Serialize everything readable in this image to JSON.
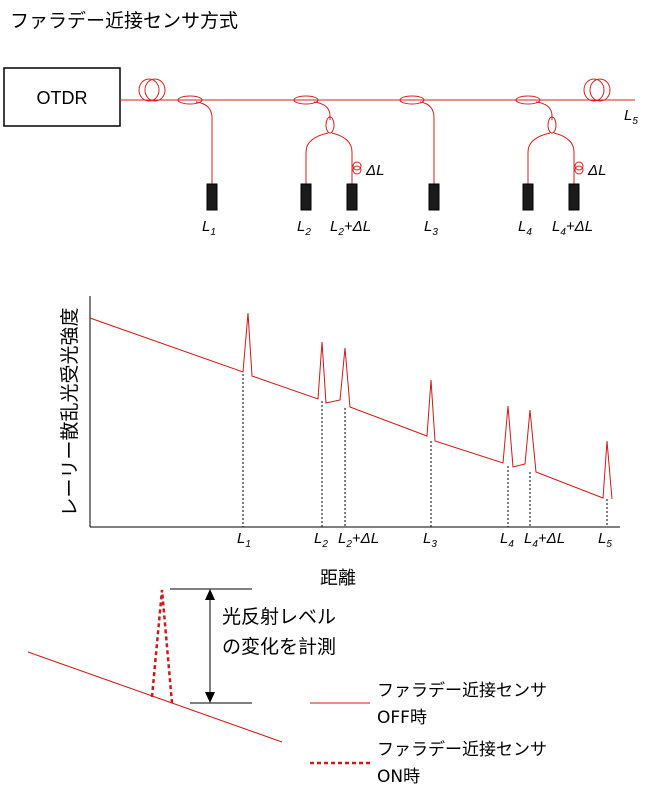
{
  "title": "ファラデー近接センサ方式",
  "diagram": {
    "otdr_label": "OTDR",
    "labels": {
      "L1": {
        "base": "L",
        "sub": "1",
        "plus": ""
      },
      "L2": {
        "base": "L",
        "sub": "2",
        "plus": ""
      },
      "L2dL": {
        "base": "L",
        "sub": "2",
        "plus": "+ΔL"
      },
      "L3": {
        "base": "L",
        "sub": "3",
        "plus": ""
      },
      "L4": {
        "base": "L",
        "sub": "4",
        "plus": ""
      },
      "L4dL": {
        "base": "L",
        "sub": "4",
        "plus": "+ΔL"
      },
      "L5": {
        "base": "L",
        "sub": "5",
        "plus": ""
      }
    },
    "delta_L": "ΔL"
  },
  "chart": {
    "ylabel": "レーリー散乱光受光強度",
    "xlabel": "距離",
    "tick_labels": [
      {
        "base": "L",
        "sub": "1",
        "plus": ""
      },
      {
        "base": "L",
        "sub": "2",
        "plus": ""
      },
      {
        "base": "L",
        "sub": "2",
        "plus": "+ΔL"
      },
      {
        "base": "L",
        "sub": "3",
        "plus": ""
      },
      {
        "base": "L",
        "sub": "4",
        "plus": ""
      },
      {
        "base": "L",
        "sub": "4",
        "plus": "+ΔL"
      },
      {
        "base": "L",
        "sub": "5",
        "plus": ""
      }
    ]
  },
  "inset": {
    "annotation_line1": "光反射レベル",
    "annotation_line2": "の変化を計測"
  },
  "legend": {
    "solid_line1": "ファラデー近接センサ",
    "solid_line2": "OFF時",
    "dashed_line1": "ファラデー近接センサ",
    "dashed_line2": "ON時"
  },
  "colors": {
    "fiber": "#d62020",
    "trace": "#cc1a1a",
    "axis": "#000000"
  }
}
